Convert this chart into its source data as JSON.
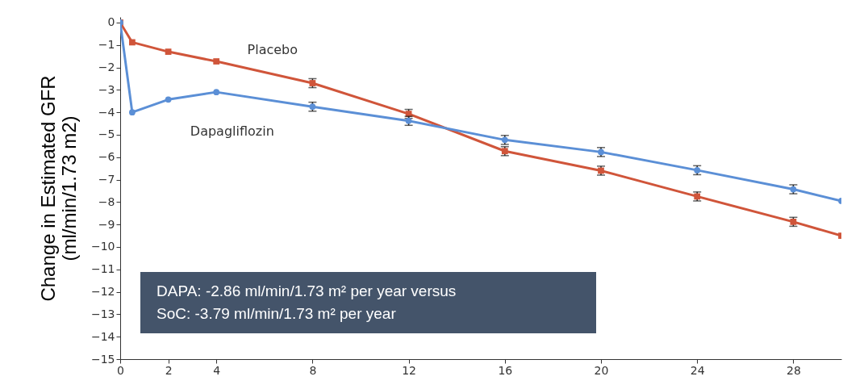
{
  "chart_data": {
    "type": "line",
    "ylabel": "Change in Estimated GFR\n(ml/min/1.73 m2)",
    "x": [
      0,
      0.5,
      2,
      4,
      8,
      12,
      16,
      20,
      24,
      28,
      30
    ],
    "xlim": [
      0,
      30
    ],
    "xticks": [
      0,
      2,
      4,
      8,
      12,
      16,
      20,
      24,
      28
    ],
    "ylim": [
      -15,
      0.25
    ],
    "yticks": [
      {
        "value": 0,
        "label": "0"
      },
      {
        "value": -1,
        "label": "−1"
      },
      {
        "value": -2,
        "label": "−2"
      },
      {
        "value": -3,
        "label": "−3"
      },
      {
        "value": -4,
        "label": "−4"
      },
      {
        "value": -5,
        "label": "−5"
      },
      {
        "value": -6,
        "label": "−6"
      },
      {
        "value": -7,
        "label": "−7"
      },
      {
        "value": -8,
        "label": "−8"
      },
      {
        "value": -9,
        "label": "−9"
      },
      {
        "value": -10,
        "label": "−10"
      },
      {
        "value": -11,
        "label": "−11"
      },
      {
        "value": -12,
        "label": "−12"
      },
      {
        "value": -13,
        "label": "−13"
      },
      {
        "value": -14,
        "label": "−14"
      },
      {
        "value": -15,
        "label": "−15"
      }
    ],
    "grid": false,
    "line_style": "solid",
    "series": [
      {
        "name": "Placebo",
        "color": "#d0553a",
        "marker": "square",
        "values": [
          0,
          -0.88,
          -1.3,
          -1.73,
          -2.7,
          -4.07,
          -5.73,
          -6.6,
          -7.75,
          -8.88,
          -9.5
        ],
        "errors": [
          null,
          null,
          null,
          null,
          0.2,
          0.2,
          0.2,
          0.2,
          0.2,
          0.2,
          null
        ]
      },
      {
        "name": "Dapagliflozin",
        "color": "#5b8fd6",
        "marker": "circle",
        "values": [
          0,
          -4.0,
          -3.43,
          -3.1,
          -3.75,
          -4.38,
          -5.23,
          -5.77,
          -6.58,
          -7.43,
          -7.95
        ],
        "errors": [
          null,
          null,
          null,
          null,
          0.2,
          0.2,
          0.2,
          0.2,
          0.2,
          0.2,
          null
        ]
      }
    ],
    "annotations": [
      "DAPA: -2.86 ml/min/1.73 m² per year versus",
      "SoC: -3.79 ml/min/1.73 m² per year"
    ]
  }
}
